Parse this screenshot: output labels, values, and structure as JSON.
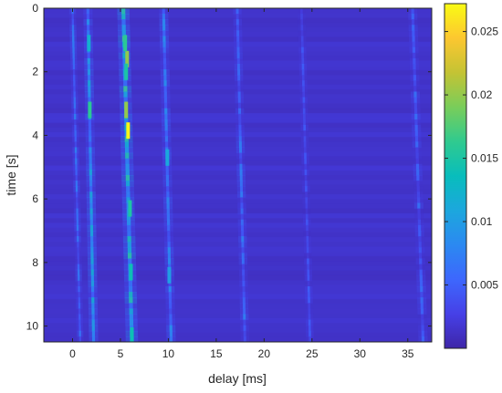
{
  "chart_data": {
    "type": "heatmap",
    "colormap": "parula",
    "xlabel": "delay [ms]",
    "ylabel": "time [s]",
    "xlim": [
      -3,
      37.5
    ],
    "ylim": [
      0,
      10.5
    ],
    "y_reversed": true,
    "x_ticks": [
      0,
      5,
      10,
      15,
      20,
      25,
      30,
      35
    ],
    "x_tick_labels": [
      "0",
      "5",
      "10",
      "15",
      "20",
      "25",
      "30",
      "35"
    ],
    "y_ticks": [
      0,
      2,
      4,
      6,
      8,
      10
    ],
    "y_tick_labels": [
      "0",
      "2",
      "4",
      "6",
      "8",
      "10"
    ],
    "colorbar": {
      "range": [
        0,
        0.0272
      ],
      "ticks": [
        0.005,
        0.01,
        0.015,
        0.02,
        0.025
      ],
      "tick_labels": [
        "0.005",
        "0.01",
        "0.015",
        "0.02",
        "0.025"
      ]
    },
    "background_value": 0.0015,
    "paths": [
      {
        "name": "path-0",
        "x": [
          0.0,
          0.8
        ],
        "width": 0.22,
        "value": 0.006
      },
      {
        "name": "path-1",
        "x": [
          1.6,
          2.2
        ],
        "width": 0.3,
        "value": 0.009
      },
      {
        "name": "path-2",
        "x": [
          5.3,
          6.2
        ],
        "width": 0.4,
        "value": 0.012
      },
      {
        "name": "path-3",
        "x": [
          9.5,
          10.3
        ],
        "width": 0.3,
        "value": 0.007
      },
      {
        "name": "path-4",
        "x": [
          17.2,
          18.0
        ],
        "width": 0.28,
        "value": 0.006
      },
      {
        "name": "path-5",
        "x": [
          23.9,
          24.8
        ],
        "width": 0.25,
        "value": 0.004
      },
      {
        "name": "path-6",
        "x": [
          35.5,
          36.6
        ],
        "width": 0.3,
        "value": 0.005
      }
    ],
    "hotspots": [
      {
        "x": 5.8,
        "y": 3.85,
        "value": 0.027
      },
      {
        "x": 5.7,
        "y": 1.6,
        "value": 0.02
      },
      {
        "x": 5.6,
        "y": 3.2,
        "value": 0.02
      },
      {
        "x": 5.5,
        "y": 1.1,
        "value": 0.016
      },
      {
        "x": 5.6,
        "y": 2.0,
        "value": 0.015
      },
      {
        "x": 1.8,
        "y": 3.2,
        "value": 0.016
      },
      {
        "x": 6.0,
        "y": 6.3,
        "value": 0.015
      },
      {
        "x": 6.1,
        "y": 8.3,
        "value": 0.014
      },
      {
        "x": 6.2,
        "y": 10.3,
        "value": 0.014
      },
      {
        "x": 1.7,
        "y": 1.1,
        "value": 0.012
      },
      {
        "x": 9.9,
        "y": 4.7,
        "value": 0.011
      },
      {
        "x": 10.1,
        "y": 8.4,
        "value": 0.01
      }
    ]
  }
}
